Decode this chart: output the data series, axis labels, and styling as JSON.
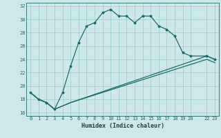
{
  "xlabel": "Humidex (Indice chaleur)",
  "bg_color": "#cce8e8",
  "grid_color": "#99cccc",
  "line_color": "#1a6b6b",
  "xlim": [
    -0.5,
    23.5
  ],
  "ylim": [
    15.5,
    32.5
  ],
  "xticks": [
    0,
    1,
    2,
    3,
    4,
    5,
    6,
    7,
    8,
    9,
    10,
    11,
    12,
    13,
    14,
    15,
    16,
    17,
    18,
    19,
    20,
    22,
    23
  ],
  "yticks": [
    16,
    18,
    20,
    22,
    24,
    26,
    28,
    30,
    32
  ],
  "series1_x": [
    0,
    1,
    2,
    3,
    4,
    5,
    6,
    7,
    8,
    9,
    10,
    11,
    12,
    13,
    14,
    15,
    16,
    17,
    18,
    19,
    20,
    22,
    23
  ],
  "series1_y": [
    19.0,
    18.0,
    17.5,
    16.5,
    19.0,
    23.0,
    26.5,
    29.0,
    29.5,
    31.0,
    31.5,
    30.5,
    30.5,
    29.5,
    30.5,
    30.5,
    29.0,
    28.5,
    27.5,
    25.0,
    24.5,
    24.5,
    24.0
  ],
  "series2_x": [
    0,
    1,
    2,
    3,
    4,
    5,
    22,
    23
  ],
  "series2_y": [
    19.0,
    18.0,
    17.5,
    16.5,
    17.0,
    17.5,
    24.5,
    24.0
  ],
  "series3_x": [
    0,
    1,
    2,
    3,
    4,
    5,
    22,
    23
  ],
  "series3_y": [
    19.0,
    18.0,
    17.5,
    16.5,
    17.0,
    17.5,
    24.0,
    23.5
  ],
  "xlabel_fontsize": 6.0,
  "tick_fontsize": 5.0,
  "tick_color": "#1a6b6b",
  "xlabel_color": "#1a4040"
}
